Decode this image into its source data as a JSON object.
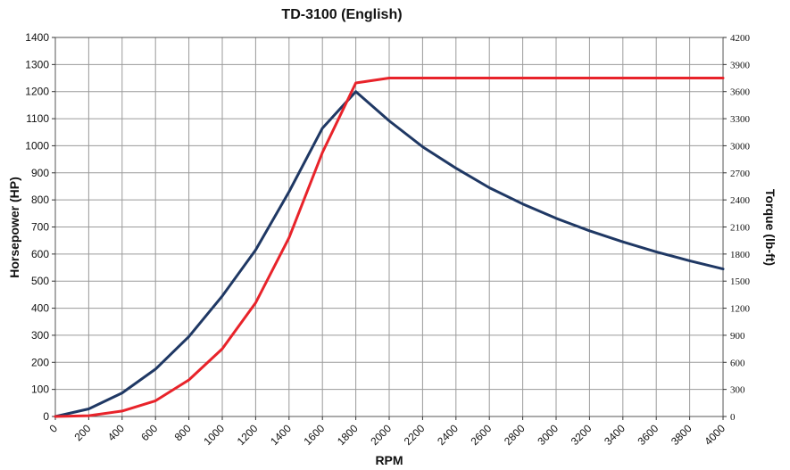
{
  "chart_data": {
    "type": "line",
    "title": "TD-3100 (English)",
    "xlabel": "RPM",
    "ylabel": "Horsepower (HP)",
    "y2label": "Torque (lb-ft)",
    "xlim": [
      0,
      4000
    ],
    "ylim": [
      0,
      1400
    ],
    "y2lim": [
      0,
      4200
    ],
    "x_ticks": [
      0,
      200,
      400,
      600,
      800,
      1000,
      1200,
      1400,
      1600,
      1800,
      2000,
      2200,
      2400,
      2600,
      2800,
      3000,
      3200,
      3400,
      3600,
      3800,
      4000
    ],
    "y_ticks": [
      0,
      100,
      200,
      300,
      400,
      500,
      600,
      700,
      800,
      900,
      1000,
      1100,
      1200,
      1300,
      1400
    ],
    "y2_ticks": [
      0,
      300,
      600,
      900,
      1200,
      1500,
      1800,
      2100,
      2400,
      2700,
      3000,
      3300,
      3600,
      3900,
      4200
    ],
    "grid": true,
    "series": [
      {
        "axis": "left",
        "color": "#1f3864",
        "x": [
          0,
          200,
          400,
          600,
          800,
          1000,
          1200,
          1400,
          1600,
          1800,
          2000,
          2200,
          2400,
          2600,
          2800,
          3000,
          3200,
          3400,
          3600,
          3800,
          4000
        ],
        "y": [
          0,
          28,
          87,
          175,
          295,
          445,
          615,
          830,
          1065,
          1200,
          1092,
          996,
          917,
          845,
          785,
          732,
          686,
          645,
          608,
          575,
          545
        ]
      },
      {
        "axis": "left",
        "color": "#e8232a",
        "x": [
          0,
          200,
          400,
          600,
          800,
          1000,
          1200,
          1400,
          1600,
          1800,
          2000,
          2200,
          2400,
          2600,
          2800,
          3000,
          3200,
          3400,
          3600,
          3800,
          4000
        ],
        "y": [
          0,
          3,
          20,
          58,
          135,
          250,
          420,
          660,
          975,
          1232,
          1250,
          1250,
          1250,
          1250,
          1250,
          1250,
          1250,
          1250,
          1250,
          1250,
          1250
        ]
      }
    ]
  }
}
